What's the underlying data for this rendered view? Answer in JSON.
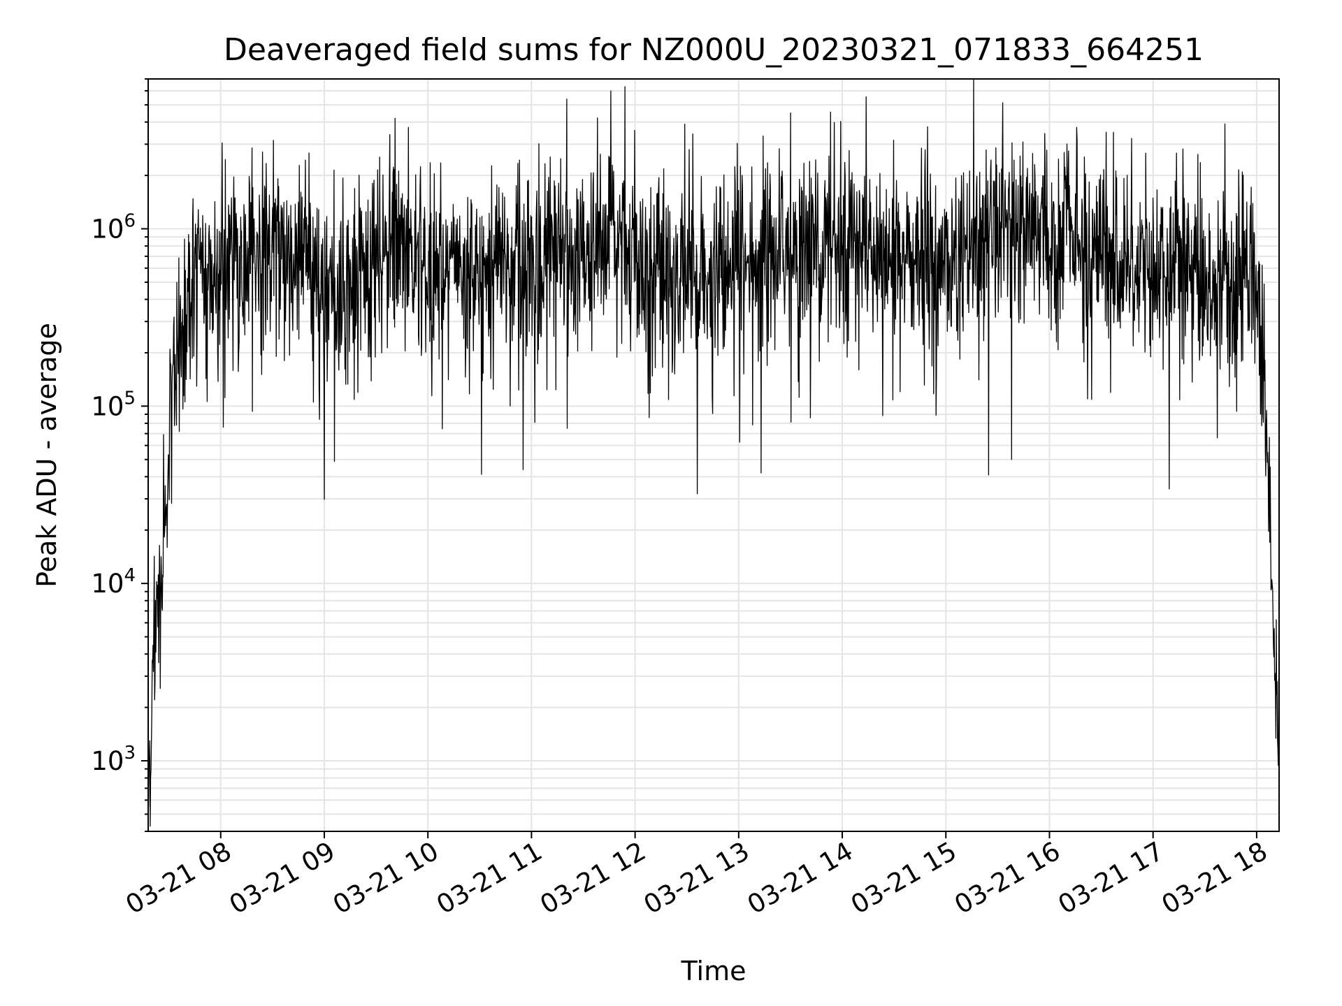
{
  "chart_data": {
    "type": "line",
    "title": "Deaveraged field sums for NZ000U_20230321_071833_664251",
    "xlabel": "Time",
    "ylabel": "Peak ADU - average",
    "yscale": "log",
    "ylim": [
      400,
      7000000
    ],
    "xlim": [
      "2023-03-21 07:18",
      "2023-03-21 18:13"
    ],
    "grid": true,
    "line_color": "#000000",
    "x_ticks": [
      "03-21 08",
      "03-21 09",
      "03-21 10",
      "03-21 11",
      "03-21 12",
      "03-21 13",
      "03-21 14",
      "03-21 15",
      "03-21 16",
      "03-21 17",
      "03-21 18"
    ],
    "y_ticks": [
      {
        "base": "10",
        "exp": "3"
      },
      {
        "base": "10",
        "exp": "4"
      },
      {
        "base": "10",
        "exp": "5"
      },
      {
        "base": "10",
        "exp": "6"
      }
    ],
    "series": [
      {
        "x": [
          "2023-03-21 07:18",
          "2023-03-21 07:20",
          "2023-03-21 07:22",
          "2023-03-21 07:24",
          "2023-03-21 07:26",
          "2023-03-21 07:28",
          "2023-03-21 07:30",
          "2023-03-21 07:32",
          "2023-03-21 07:35",
          "2023-03-21 07:40",
          "2023-03-21 07:45",
          "2023-03-21 07:50",
          "2023-03-21 08:00",
          "2023-03-21 08:15",
          "2023-03-21 08:30",
          "2023-03-21 08:45",
          "2023-03-21 09:00",
          "2023-03-21 09:15",
          "2023-03-21 09:30",
          "2023-03-21 09:40",
          "2023-03-21 09:50",
          "2023-03-21 10:00",
          "2023-03-21 10:15",
          "2023-03-21 10:30",
          "2023-03-21 10:45",
          "2023-03-21 11:00",
          "2023-03-21 11:15",
          "2023-03-21 11:30",
          "2023-03-21 11:50",
          "2023-03-21 12:00",
          "2023-03-21 12:15",
          "2023-03-21 12:30",
          "2023-03-21 12:45",
          "2023-03-21 13:00",
          "2023-03-21 13:15",
          "2023-03-21 13:30",
          "2023-03-21 13:45",
          "2023-03-21 14:00",
          "2023-03-21 14:15",
          "2023-03-21 14:30",
          "2023-03-21 14:45",
          "2023-03-21 15:00",
          "2023-03-21 15:15",
          "2023-03-21 15:30",
          "2023-03-21 15:40",
          "2023-03-21 16:00",
          "2023-03-21 16:15",
          "2023-03-21 16:30",
          "2023-03-21 16:45",
          "2023-03-21 17:00",
          "2023-03-21 17:15",
          "2023-03-21 17:30",
          "2023-03-21 17:45",
          "2023-03-21 17:55",
          "2023-03-21 18:00",
          "2023-03-21 18:04",
          "2023-03-21 18:07",
          "2023-03-21 18:09",
          "2023-03-21 18:11",
          "2023-03-21 18:13"
        ],
        "y": [
          600,
          2000,
          5000,
          8000,
          10000,
          20000,
          80000,
          150000,
          250000,
          400000,
          500000,
          550000,
          600000,
          700000,
          750000,
          650000,
          500000,
          450000,
          550000,
          800000,
          700000,
          600000,
          550000,
          500000,
          600000,
          700000,
          650000,
          700000,
          900000,
          800000,
          600000,
          500000,
          550000,
          600000,
          700000,
          800000,
          850000,
          900000,
          750000,
          700000,
          650000,
          600000,
          700000,
          900000,
          1100000,
          1000000,
          900000,
          800000,
          700000,
          650000,
          600000,
          550000,
          500000,
          550000,
          400000,
          150000,
          30000,
          8000,
          3000,
          2000
        ]
      }
    ],
    "annotations": [
      {
        "x": "2023-03-21 09:41",
        "y": 4200000
      },
      {
        "x": "2023-03-21 12:36",
        "y": 32000
      },
      {
        "x": "2023-03-21 13:13",
        "y": 42000
      },
      {
        "x": "2023-03-21 13:30",
        "y": 4500000
      },
      {
        "x": "2023-03-21 15:38",
        "y": 50000
      },
      {
        "x": "2023-03-21 16:37",
        "y": 3500000
      }
    ]
  }
}
